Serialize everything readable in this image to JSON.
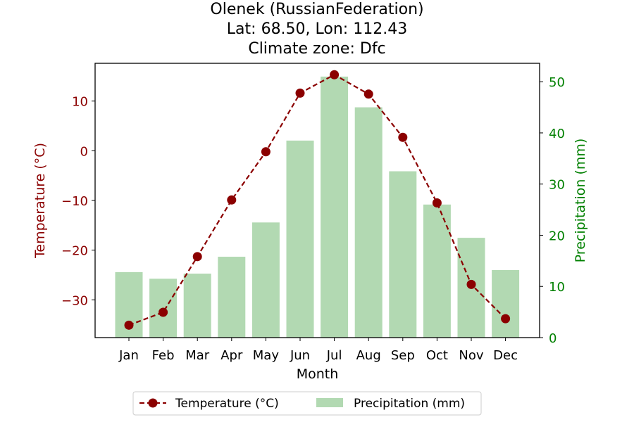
{
  "chart_data": {
    "type": "bar+line",
    "title_lines": [
      "Olenek (RussianFederation)",
      "Lat: 68.50, Lon: 112.43",
      "Climate zone: Dfc"
    ],
    "xlabel": "Month",
    "ylabel_left": "Temperature (°C)",
    "ylabel_right": "Precipitation (mm)",
    "categories": [
      "Jan",
      "Feb",
      "Mar",
      "Apr",
      "May",
      "Jun",
      "Jul",
      "Aug",
      "Sep",
      "Oct",
      "Nov",
      "Dec"
    ],
    "series": [
      {
        "name": "Temperature (°C)",
        "axis": "left",
        "style": "dashed line with circle markers",
        "color": "#8b0000",
        "values": [
          -35.1,
          -32.5,
          -21.3,
          -9.9,
          -0.2,
          11.6,
          15.3,
          11.4,
          2.7,
          -10.5,
          -26.9,
          -33.8
        ]
      },
      {
        "name": "Precipitation (mm)",
        "axis": "right",
        "style": "bar",
        "color": "#b2d9b2",
        "values": [
          12.8,
          11.5,
          12.5,
          15.8,
          22.5,
          38.5,
          51.0,
          45.0,
          32.5,
          26.0,
          19.5,
          13.2
        ]
      }
    ],
    "ylim_left": [
      -37.6,
      17.6
    ],
    "yticks_left": [
      -30,
      -20,
      -10,
      0,
      10
    ],
    "ylim_right": [
      0,
      53.6
    ],
    "yticks_right": [
      0,
      10,
      20,
      30,
      40,
      50
    ],
    "left_axis_color": "#8b0000",
    "right_axis_color": "#008000",
    "grid": false,
    "legend_placement": "bottom-center"
  }
}
